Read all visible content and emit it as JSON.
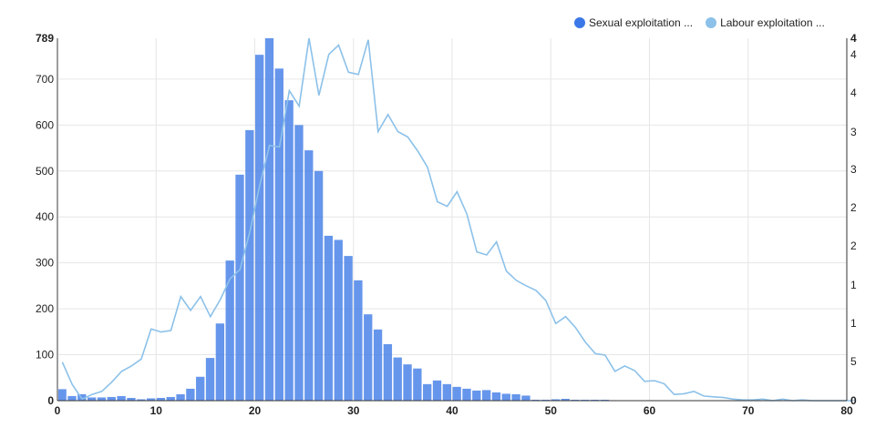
{
  "chart_data": {
    "type": "bar",
    "title": "",
    "xlabel": "",
    "ylabel": "",
    "xlim": [
      0,
      80
    ],
    "ylim": [
      0,
      789
    ],
    "y2lim": [
      0,
      4.7
    ],
    "grid": true,
    "legend_position": "top-right",
    "x_ticks": [
      "0",
      "10",
      "20",
      "30",
      "40",
      "50",
      "60",
      "70",
      "80"
    ],
    "y_ticks": [
      "0",
      "100",
      "200",
      "300",
      "400",
      "500",
      "600",
      "700",
      "789"
    ],
    "y2_tick_labels": [
      "0",
      "5",
      "1",
      "1",
      "2",
      "2",
      "3",
      "3",
      "4",
      "4",
      "4"
    ],
    "series": [
      {
        "name": "Sexual exploitation ...",
        "type": "bar",
        "axis": "left",
        "color": "#3b78e7",
        "x": [
          0,
          1,
          2,
          3,
          4,
          5,
          6,
          7,
          8,
          9,
          10,
          11,
          12,
          13,
          14,
          15,
          16,
          17,
          18,
          19,
          20,
          21,
          22,
          23,
          24,
          25,
          26,
          27,
          28,
          29,
          30,
          31,
          32,
          33,
          34,
          35,
          36,
          37,
          38,
          39,
          40,
          41,
          42,
          43,
          44,
          45,
          46,
          47,
          48,
          49,
          50,
          51,
          52,
          53,
          54,
          55,
          56,
          57,
          58,
          59,
          60,
          61,
          62,
          63,
          64,
          65,
          66,
          67,
          68,
          69,
          70,
          71,
          72,
          73,
          74,
          75,
          76,
          77,
          78,
          79,
          80
        ],
        "values": [
          25,
          10,
          14,
          7,
          7,
          8,
          10,
          6,
          3,
          5,
          6,
          8,
          14,
          26,
          52,
          93,
          168,
          305,
          492,
          589,
          753,
          789,
          723,
          654,
          600,
          545,
          500,
          359,
          350,
          315,
          262,
          188,
          155,
          123,
          94,
          79,
          70,
          36,
          44,
          36,
          30,
          26,
          22,
          23,
          18,
          15,
          14,
          11,
          2,
          2,
          3,
          4,
          2,
          2,
          2,
          2,
          1,
          1,
          1,
          1,
          1,
          1,
          1,
          1,
          1,
          1,
          1,
          1,
          1,
          1,
          1,
          1,
          1,
          1,
          1,
          1,
          1,
          1,
          1,
          1,
          1
        ]
      },
      {
        "name": "Labour exploitation ...",
        "type": "line",
        "axis": "right",
        "color": "#8cc1e9",
        "x": [
          0,
          1,
          2,
          3,
          4,
          5,
          6,
          7,
          8,
          9,
          10,
          11,
          12,
          13,
          14,
          15,
          16,
          17,
          18,
          19,
          20,
          21,
          22,
          23,
          24,
          25,
          26,
          27,
          28,
          29,
          30,
          31,
          32,
          33,
          34,
          35,
          36,
          37,
          38,
          39,
          40,
          41,
          42,
          43,
          44,
          45,
          46,
          47,
          48,
          49,
          50,
          51,
          52,
          53,
          54,
          55,
          56,
          57,
          58,
          59,
          60,
          61,
          62,
          63,
          64,
          65,
          66,
          67,
          68,
          69,
          70,
          71,
          72,
          73,
          74,
          75,
          76,
          77,
          78,
          79,
          80
        ],
        "values": [
          0.5,
          0.21,
          0.02,
          0.08,
          0.12,
          0.24,
          0.38,
          0.45,
          0.54,
          0.93,
          0.89,
          0.91,
          1.35,
          1.17,
          1.35,
          1.09,
          1.31,
          1.58,
          1.7,
          2.19,
          2.79,
          3.31,
          3.29,
          4.02,
          3.82,
          4.7,
          3.96,
          4.49,
          4.61,
          4.26,
          4.23,
          4.68,
          3.49,
          3.71,
          3.49,
          3.42,
          3.24,
          3.03,
          2.58,
          2.52,
          2.71,
          2.42,
          1.93,
          1.89,
          2.06,
          1.68,
          1.56,
          1.49,
          1.43,
          1.3,
          1.0,
          1.09,
          0.95,
          0.76,
          0.61,
          0.59,
          0.38,
          0.45,
          0.39,
          0.25,
          0.26,
          0.22,
          0.08,
          0.09,
          0.12,
          0.06,
          0.05,
          0.04,
          0.02,
          0.01,
          0.01,
          0.02,
          0.0,
          0.02,
          0.0,
          0.01,
          0.0,
          0.0,
          0.0,
          0.0,
          0.0
        ]
      }
    ]
  },
  "legend": {
    "items": [
      {
        "label": "Sexual exploitation ...",
        "color": "#3b78e7"
      },
      {
        "label": "Labour exploitation ...",
        "color": "#8cc1e9"
      }
    ]
  }
}
